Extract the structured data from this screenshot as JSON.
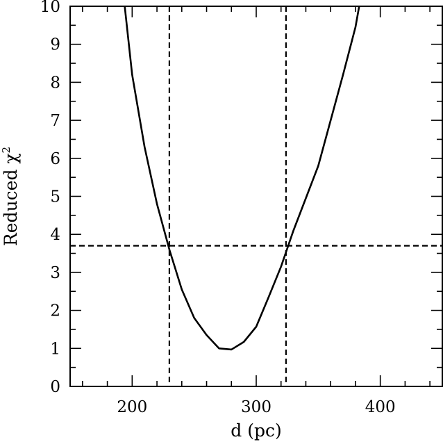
{
  "chart_data": {
    "type": "line",
    "xlabel": "d (pc)",
    "ylabel": "Reduced χ",
    "ylabel_superscript": "2",
    "xlim": [
      150,
      450
    ],
    "ylim": [
      0,
      10
    ],
    "xticks_major": [
      200,
      300,
      400
    ],
    "xticks_minor": [
      160,
      180,
      220,
      240,
      260,
      280,
      320,
      340,
      360,
      380,
      420,
      440
    ],
    "yticks_major": [
      0,
      1,
      2,
      3,
      4,
      5,
      6,
      7,
      8,
      9,
      10
    ],
    "yticks_minor": [
      0.5,
      1.5,
      2.5,
      3.5,
      4.5,
      5.5,
      6.5,
      7.5,
      8.5,
      9.5
    ],
    "grid": false,
    "series": [
      {
        "x": [
          194,
          200,
          210,
          220,
          230,
          240,
          250,
          260,
          270,
          280,
          290,
          300,
          310,
          320,
          330,
          340,
          350,
          360,
          370,
          380,
          383
        ],
        "y": [
          10,
          8.2,
          6.3,
          4.8,
          3.6,
          2.55,
          1.8,
          1.35,
          1.0,
          0.97,
          1.17,
          1.57,
          2.35,
          3.15,
          4.1,
          4.95,
          5.8,
          7.0,
          8.2,
          9.45,
          10
        ]
      }
    ],
    "reference_lines": {
      "horizontal": [
        3.7
      ],
      "vertical": [
        230,
        324
      ]
    }
  }
}
